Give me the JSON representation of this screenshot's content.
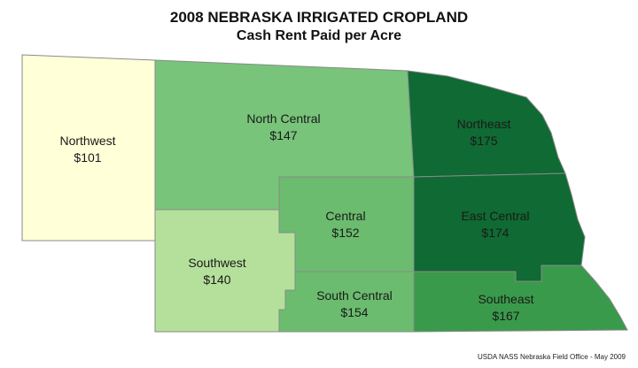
{
  "title": "2008 NEBRASKA IRRIGATED CROPLAND",
  "subtitle": "Cash Rent Paid per Acre",
  "source": "USDA NASS Nebraska Field Office - May 2009",
  "regions": {
    "northwest": {
      "name": "Northwest",
      "value": "$101",
      "rent": 101,
      "color": "#ffffd8"
    },
    "north_central": {
      "name": "North Central",
      "value": "$147",
      "rent": 147,
      "color": "#78c47a"
    },
    "northeast": {
      "name": "Northeast",
      "value": "$175",
      "rent": 175,
      "color": "#0f6a33"
    },
    "central": {
      "name": "Central",
      "value": "$152",
      "rent": 152,
      "color": "#6bbc6e"
    },
    "east_central": {
      "name": "East Central",
      "value": "$174",
      "rent": 174,
      "color": "#0f6a33"
    },
    "southwest": {
      "name": "Southwest",
      "value": "$140",
      "rent": 140,
      "color": "#b5e09b"
    },
    "south_central": {
      "name": "South Central",
      "value": "$154",
      "rent": 154,
      "color": "#6bbc6e"
    },
    "southeast": {
      "name": "Southeast",
      "value": "$167",
      "rent": 167,
      "color": "#3a9a4b"
    }
  }
}
